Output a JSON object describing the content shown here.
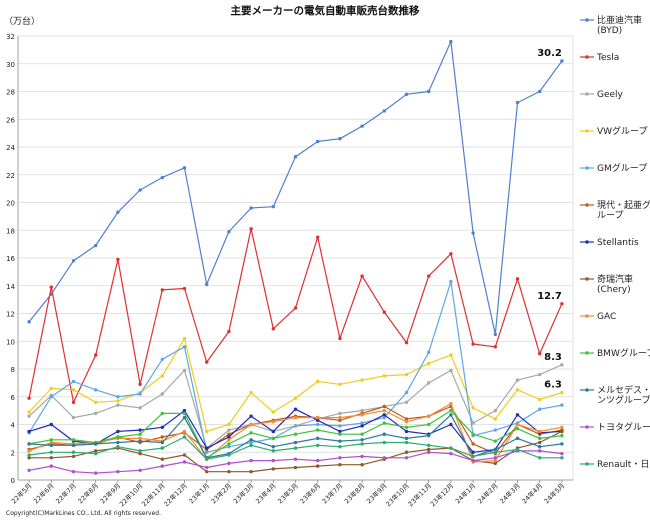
{
  "chart_data": {
    "type": "line",
    "title": "主要メーカーの電気自動車販売台数推移",
    "ylabel": "（万台）",
    "ylim": [
      0,
      32
    ],
    "yticks": [
      0,
      2,
      4,
      6,
      8,
      10,
      12,
      14,
      16,
      18,
      20,
      22,
      24,
      26,
      28,
      30,
      32
    ],
    "grid": true,
    "legend_position": "right",
    "categories": [
      "22年5月",
      "22年6月",
      "22年7月",
      "22年8月",
      "22年9月",
      "22年10月",
      "22年11月",
      "22年12月",
      "23年1月",
      "23年2月",
      "23年3月",
      "23年4月",
      "23年5月",
      "23年6月",
      "23年7月",
      "23年8月",
      "23年9月",
      "23年10月",
      "23年11月",
      "23年12月",
      "24年1月",
      "24年2月",
      "24年3月",
      "24年4月",
      "24年5月"
    ],
    "series": [
      {
        "name": "比亜迪汽車(BYD)",
        "color": "#4f7fd0",
        "values": [
          11.4,
          13.4,
          15.8,
          16.9,
          19.3,
          20.9,
          21.8,
          22.5,
          14.1,
          17.9,
          19.6,
          19.7,
          23.3,
          24.4,
          24.6,
          25.5,
          26.6,
          27.8,
          28.0,
          31.6,
          17.8,
          10.5,
          27.2,
          28.0,
          30.2
        ]
      },
      {
        "name": "Tesla",
        "color": "#e0302e",
        "values": [
          5.9,
          13.9,
          5.6,
          9.0,
          15.9,
          6.9,
          13.7,
          13.8,
          8.5,
          10.7,
          18.1,
          10.9,
          12.4,
          17.5,
          10.2,
          14.7,
          12.1,
          9.9,
          14.7,
          16.3,
          9.8,
          9.6,
          14.5,
          9.1,
          12.7
        ]
      },
      {
        "name": "Geely",
        "color": "#a8a8a8",
        "values": [
          4.6,
          6.1,
          4.5,
          4.8,
          5.4,
          5.2,
          6.2,
          7.9,
          2.3,
          3.6,
          4.0,
          3.5,
          3.9,
          4.4,
          4.8,
          5.0,
          5.3,
          5.6,
          7.0,
          7.9,
          4.1,
          5.0,
          7.2,
          7.6,
          8.3
        ]
      },
      {
        "name": "VWグループ",
        "color": "#f2cc1a",
        "values": [
          4.9,
          6.6,
          6.5,
          5.6,
          5.7,
          6.3,
          7.5,
          10.2,
          3.5,
          4.0,
          6.3,
          4.9,
          5.9,
          7.1,
          6.9,
          7.2,
          7.5,
          7.6,
          8.4,
          9.0,
          5.2,
          4.4,
          6.5,
          5.8,
          6.3
        ]
      },
      {
        "name": "GMグループ",
        "color": "#5ea6e5",
        "values": [
          3.4,
          6.0,
          7.1,
          6.5,
          6.0,
          6.2,
          8.7,
          9.6,
          2.0,
          2.4,
          2.7,
          3.0,
          3.9,
          4.0,
          3.9,
          4.1,
          4.5,
          6.3,
          9.2,
          14.3,
          3.2,
          3.6,
          4.1,
          5.1,
          5.4
        ]
      },
      {
        "name": "現代・起亜グループ",
        "color": "#c05a1e",
        "values": [
          2.2,
          2.6,
          2.5,
          2.6,
          3.1,
          2.7,
          3.1,
          3.4,
          2.2,
          3.3,
          4.0,
          4.3,
          4.6,
          4.5,
          4.3,
          4.8,
          5.3,
          4.4,
          4.6,
          5.3,
          2.6,
          1.9,
          4.0,
          3.3,
          3.6
        ]
      },
      {
        "name": "Stellantis",
        "color": "#1f2db8",
        "values": [
          3.5,
          4.0,
          2.8,
          2.6,
          3.5,
          3.6,
          3.8,
          5.0,
          2.3,
          3.1,
          4.6,
          3.5,
          5.1,
          4.3,
          3.5,
          3.9,
          4.7,
          3.5,
          3.3,
          4.0,
          2.0,
          2.2,
          4.7,
          3.4,
          3.5
        ]
      },
      {
        "name": "奇瑞汽車(Chery)",
        "color": "#8b5a2b",
        "values": [
          1.6,
          1.6,
          1.7,
          2.1,
          2.3,
          1.9,
          1.5,
          1.8,
          0.6,
          0.6,
          0.6,
          0.8,
          0.9,
          1.0,
          1.1,
          1.1,
          1.5,
          2.0,
          2.2,
          2.3,
          1.4,
          1.2,
          2.3,
          2.7,
          3.5
        ]
      },
      {
        "name": "GAC",
        "color": "#f28d35",
        "values": [
          2.1,
          2.7,
          2.6,
          2.7,
          3.0,
          3.0,
          2.8,
          3.5,
          1.5,
          2.9,
          4.0,
          4.2,
          4.5,
          4.5,
          4.5,
          4.7,
          5.0,
          4.2,
          4.6,
          5.5,
          1.3,
          1.4,
          4.0,
          3.5,
          3.8
        ]
      },
      {
        "name": "BMWグループ",
        "color": "#3dc23d",
        "values": [
          2.6,
          2.9,
          2.9,
          2.7,
          3.1,
          3.3,
          4.8,
          4.8,
          1.6,
          2.6,
          3.4,
          3.0,
          3.3,
          3.6,
          3.3,
          3.3,
          4.1,
          3.8,
          4.0,
          5.0,
          3.3,
          2.8,
          3.7,
          3.0,
          3.2
        ]
      },
      {
        "name": "メルセデス・ベンツグループ",
        "color": "#2a7a9e",
        "values": [
          2.6,
          2.5,
          2.5,
          2.6,
          2.7,
          2.8,
          2.7,
          4.5,
          1.6,
          1.9,
          2.9,
          2.4,
          2.7,
          3.0,
          2.8,
          2.9,
          3.3,
          3.0,
          3.2,
          4.7,
          1.7,
          2.2,
          3.0,
          2.4,
          2.6
        ]
      },
      {
        "name": "トヨタグループ",
        "color": "#b04fd0",
        "values": [
          0.7,
          1.0,
          0.6,
          0.5,
          0.6,
          0.7,
          1.0,
          1.3,
          0.9,
          1.2,
          1.4,
          1.4,
          1.5,
          1.4,
          1.6,
          1.7,
          1.6,
          1.6,
          2.0,
          1.9,
          1.4,
          1.6,
          2.1,
          2.1,
          1.9
        ]
      },
      {
        "name": "Renault・日産",
        "color": "#2faa70",
        "values": [
          1.8,
          2.0,
          2.0,
          1.9,
          2.4,
          2.1,
          2.3,
          3.1,
          1.5,
          1.8,
          2.5,
          2.1,
          2.3,
          2.5,
          2.4,
          2.6,
          2.7,
          2.7,
          2.5,
          2.3,
          1.7,
          2.0,
          2.2,
          1.6,
          1.6
        ]
      }
    ],
    "annotations": [
      {
        "series": "比亜迪汽車(BYD)",
        "text": "30.2"
      },
      {
        "series": "Tesla",
        "text": "12.7"
      },
      {
        "series": "Geely",
        "text": "8.3"
      },
      {
        "series": "VWグループ",
        "text": "6.3"
      }
    ]
  },
  "legend_labels": [
    [
      "比亜迪汽車",
      "(BYD)"
    ],
    [
      "Tesla"
    ],
    [
      "Geely"
    ],
    [
      "VWグループ"
    ],
    [
      "GMグループ"
    ],
    [
      "現代・起亜グ",
      "ループ"
    ],
    [
      "Stellantis"
    ],
    [
      "奇瑞汽車",
      "(Chery)"
    ],
    [
      "GAC"
    ],
    [
      "BMWグループ"
    ],
    [
      "メルセデス・ベ",
      "ンツグループ"
    ],
    [
      "トヨタグループ"
    ],
    [
      "Renault・日産"
    ]
  ],
  "copyright": "Copyright(C)MarkLines CO., Ltd. All rights reserved."
}
